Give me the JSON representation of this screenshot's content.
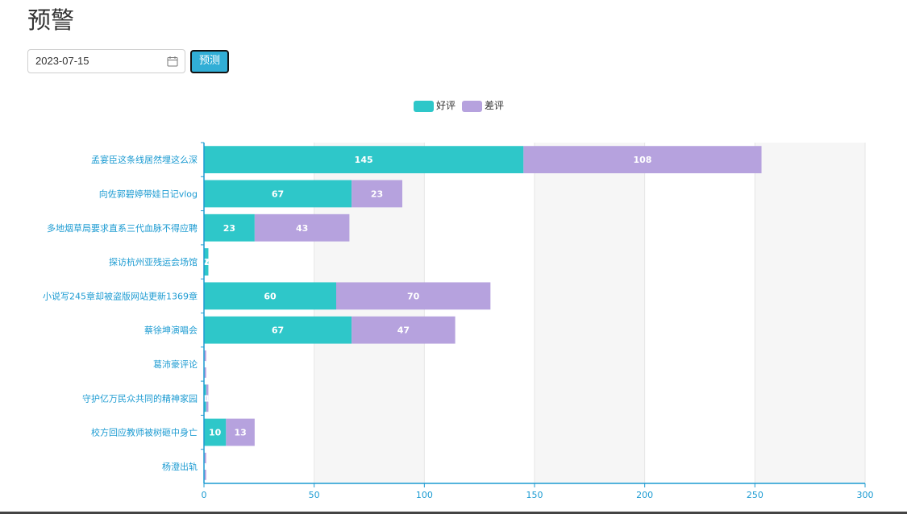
{
  "page": {
    "title": "预警"
  },
  "controls": {
    "date_value": "2023-07-15",
    "predict_label": "预测"
  },
  "colors": {
    "good": "#2ec7c9",
    "bad": "#b6a2de",
    "axis": "#1c9bd2",
    "label": "#1c9bd2"
  },
  "chart_data": {
    "type": "bar",
    "orientation": "horizontal",
    "stacked": true,
    "legend": {
      "position": "top-center",
      "entries": [
        "好评",
        "差评"
      ]
    },
    "categories": [
      "杨澄出轨",
      "校方回应教师被树砸中身亡",
      "守护亿万民众共同的精神家园",
      "葛沛豪评论",
      "蔡徐坤演唱会",
      "小说写245章却被盗版网站更新1369章",
      "探访杭州亚残运会场馆",
      "多地烟草局要求直系三代血脉不得应聘",
      "向佐郭碧婷带娃日记vlog",
      "孟宴臣这条线居然埋这么深"
    ],
    "series": [
      {
        "name": "好评",
        "values": [
          0,
          10,
          1,
          0,
          67,
          60,
          2,
          23,
          67,
          145
        ]
      },
      {
        "name": "差评",
        "values": [
          1,
          13,
          1,
          1,
          47,
          70,
          0,
          43,
          23,
          108
        ]
      }
    ],
    "xlim": [
      0,
      300
    ],
    "xticks": [
      "0",
      "50",
      "100",
      "150",
      "200",
      "250",
      "300"
    ],
    "grid": "alternating vertical bands"
  }
}
